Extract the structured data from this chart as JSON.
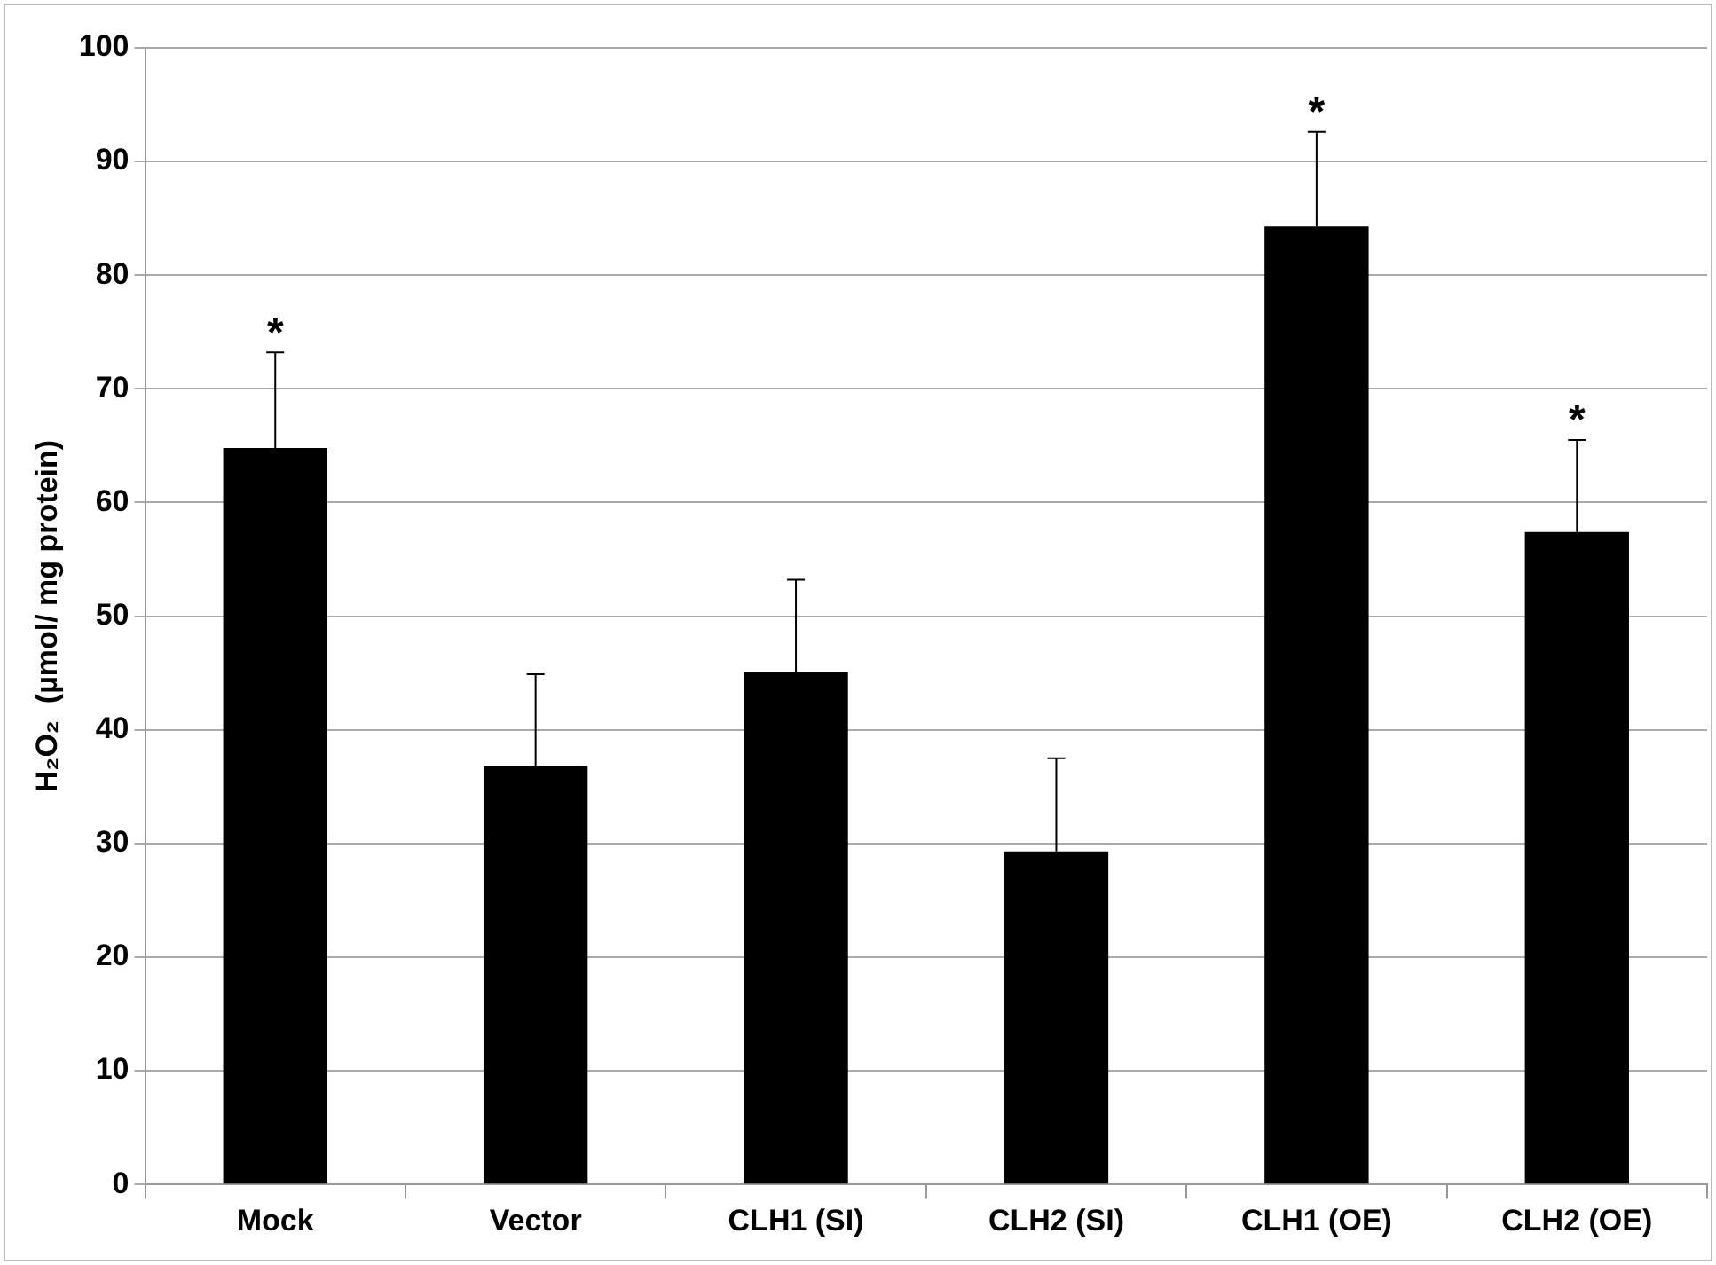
{
  "chart_data": {
    "type": "bar",
    "ylabel": "H₂O₂  (µmol/ mg protein)",
    "categories": [
      "Mock",
      "Vector",
      "CLH1 (SI)",
      "CLH2 (SI)",
      "CLH1 (OE)",
      "CLH2 (OE)"
    ],
    "values": [
      64.8,
      36.8,
      45.1,
      29.3,
      84.3,
      57.4
    ],
    "errors": [
      [
        64.8,
        73.2
      ],
      [
        36.8,
        44.9
      ],
      [
        45.1,
        53.2
      ],
      [
        29.3,
        37.5
      ],
      [
        84.3,
        92.6
      ],
      [
        57.4,
        65.5
      ]
    ],
    "color": "#000000",
    "ylim": [
      0,
      100
    ],
    "yticks": [
      0,
      10,
      20,
      30,
      40,
      50,
      60,
      70,
      80,
      90,
      100
    ],
    "grid": "y",
    "legend": false,
    "annotations": [
      {
        "text": "*",
        "x": "Mock",
        "y": 73.2
      },
      {
        "text": "*",
        "x": "CLH1 (OE)",
        "y": 92.6
      },
      {
        "text": "*",
        "x": "CLH2 (OE)",
        "y": 65.5
      }
    ]
  }
}
